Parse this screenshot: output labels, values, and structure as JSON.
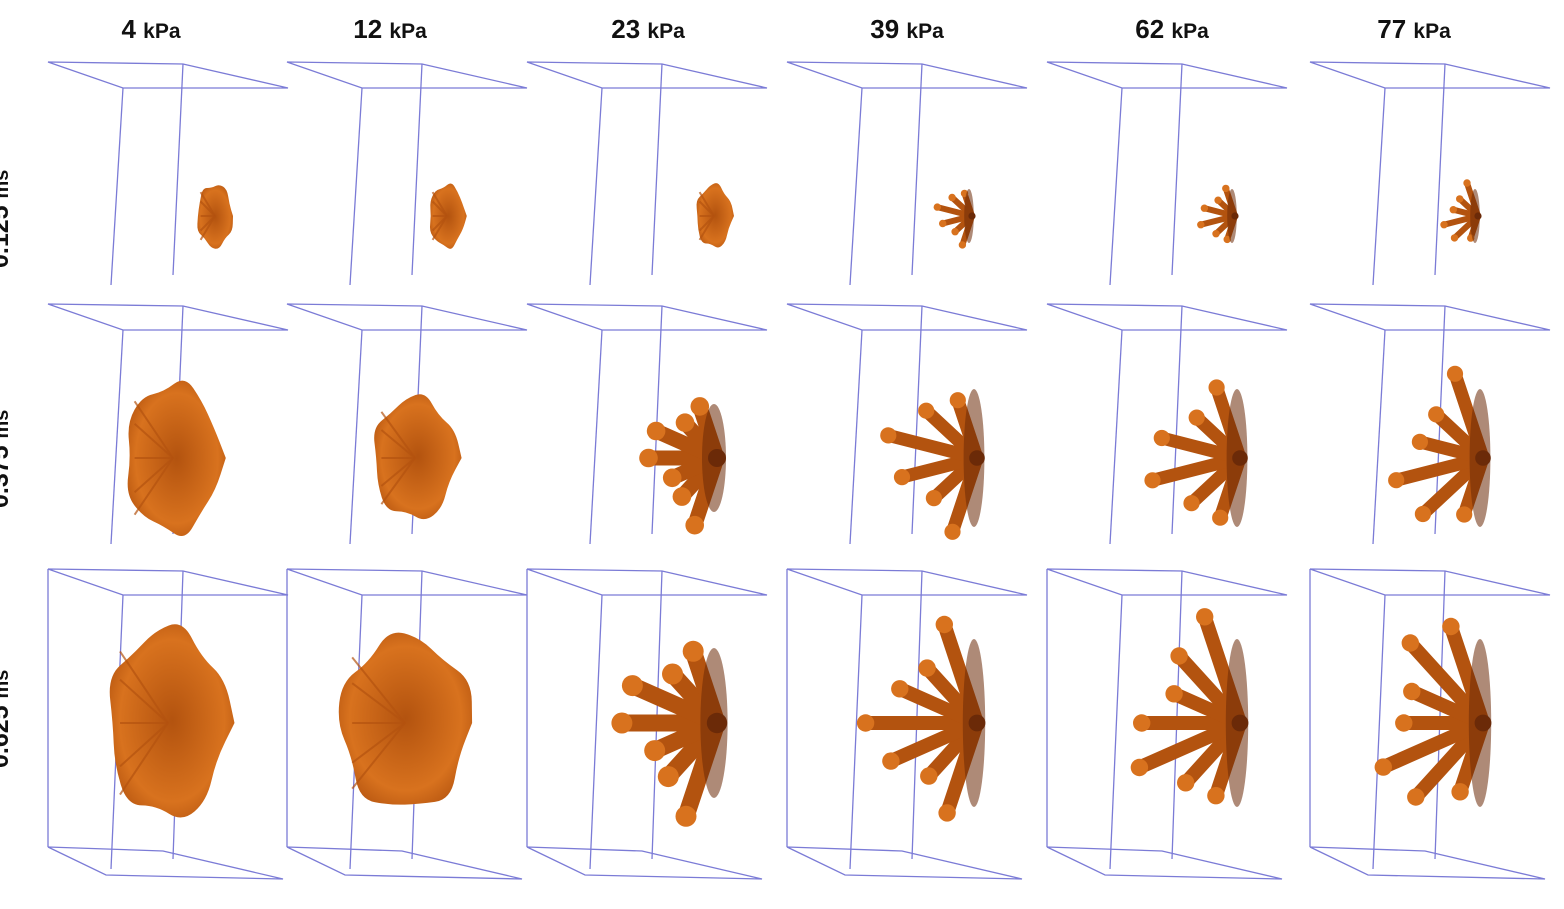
{
  "columns": [
    {
      "value": "4",
      "unit": "kPa"
    },
    {
      "value": "12",
      "unit": "kPa"
    },
    {
      "value": "23",
      "unit": "kPa"
    },
    {
      "value": "39",
      "unit": "kPa"
    },
    {
      "value": "62",
      "unit": "kPa"
    },
    {
      "value": "77",
      "unit": "kPa"
    }
  ],
  "rows": [
    {
      "value": "0.125",
      "unit": "ms"
    },
    {
      "value": "0.375",
      "unit": "ms"
    },
    {
      "value": "0.625",
      "unit": "ms"
    }
  ],
  "colors": {
    "box_lines": "#7b7bd6",
    "droplet_light": "#d8721e",
    "droplet_mid": "#b3530f",
    "droplet_dark": "#6b2a08",
    "text": "#111111"
  }
}
